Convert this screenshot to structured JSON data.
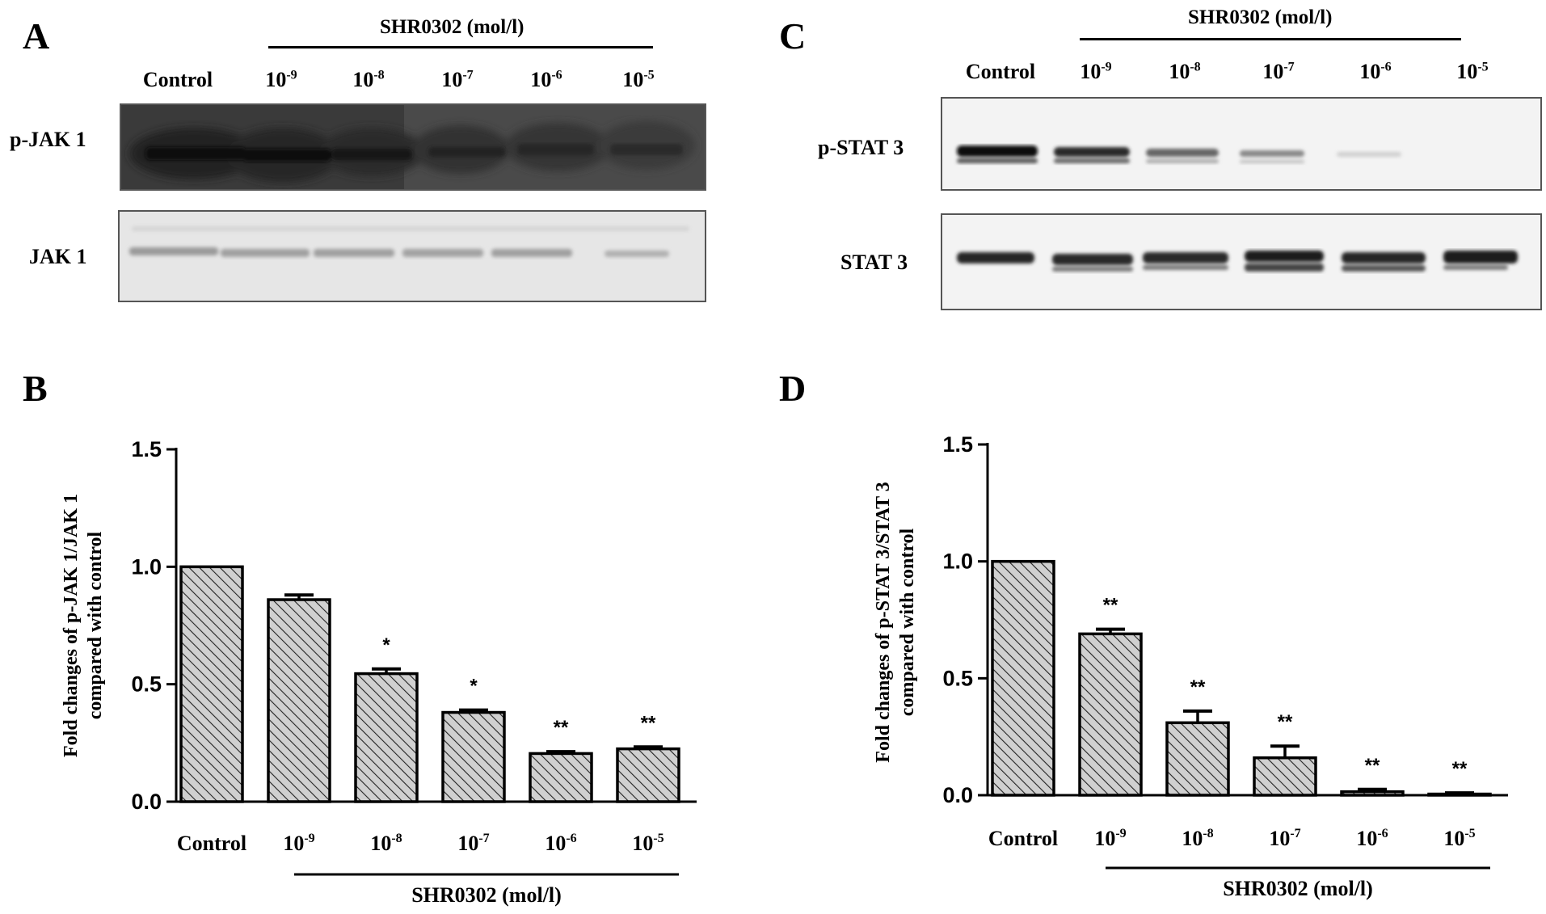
{
  "panels": {
    "A": {
      "letter": "A",
      "treatment_header": "SHR0302 (mol/l)",
      "lanes": [
        {
          "base": "Control",
          "exp": ""
        },
        {
          "base": "10",
          "exp": "-9"
        },
        {
          "base": "10",
          "exp": "-8"
        },
        {
          "base": "10",
          "exp": "-7"
        },
        {
          "base": "10",
          "exp": "-6"
        },
        {
          "base": "10",
          "exp": "-5"
        }
      ],
      "rows": [
        "p-JAK 1",
        "JAK 1"
      ]
    },
    "C": {
      "letter": "C",
      "treatment_header": "SHR0302 (mol/l)",
      "lanes": [
        {
          "base": "Control",
          "exp": ""
        },
        {
          "base": "10",
          "exp": "-9"
        },
        {
          "base": "10",
          "exp": "-8"
        },
        {
          "base": "10",
          "exp": "-7"
        },
        {
          "base": "10",
          "exp": "-6"
        },
        {
          "base": "10",
          "exp": "-5"
        }
      ],
      "rows": [
        "p-STAT 3",
        "STAT 3"
      ]
    },
    "B": {
      "letter": "B"
    },
    "D": {
      "letter": "D"
    }
  },
  "chart_data": [
    {
      "panel": "B",
      "type": "bar",
      "categories": [
        {
          "base": "Control",
          "exp": ""
        },
        {
          "base": "10",
          "exp": "-9"
        },
        {
          "base": "10",
          "exp": "-8"
        },
        {
          "base": "10",
          "exp": "-7"
        },
        {
          "base": "10",
          "exp": "-6"
        },
        {
          "base": "10",
          "exp": "-5"
        }
      ],
      "values": [
        1.0,
        0.86,
        0.545,
        0.38,
        0.205,
        0.225
      ],
      "errors": [
        0.0,
        0.02,
        0.02,
        0.01,
        0.008,
        0.008
      ],
      "significance": [
        "",
        "",
        "*",
        "*",
        "**",
        "**"
      ],
      "ylabel_line1": "Fold changes of p-JAK 1/JAK 1",
      "ylabel_line2": "compared  with control",
      "xlabel": "SHR0302  (mol/l)",
      "ylim": [
        0,
        1.5
      ],
      "yticks": [
        "0.0",
        "0.5",
        "1.0",
        "1.5"
      ],
      "bar_fill": "hatched gray"
    },
    {
      "panel": "D",
      "type": "bar",
      "categories": [
        {
          "base": "Control",
          "exp": ""
        },
        {
          "base": "10",
          "exp": "-9"
        },
        {
          "base": "10",
          "exp": "-8"
        },
        {
          "base": "10",
          "exp": "-7"
        },
        {
          "base": "10",
          "exp": "-6"
        },
        {
          "base": "10",
          "exp": "-5"
        }
      ],
      "values": [
        1.0,
        0.69,
        0.31,
        0.16,
        0.015,
        0.005
      ],
      "errors": [
        0.0,
        0.02,
        0.05,
        0.05,
        0.01,
        0.005
      ],
      "significance": [
        "",
        "**",
        "**",
        "**",
        "**",
        "**"
      ],
      "ylabel_line1": "Fold changes of p-STAT 3/STAT 3",
      "ylabel_line2": "compared with control",
      "xlabel": "SHR0302 (mol/l)",
      "ylim": [
        0,
        1.5
      ],
      "yticks": [
        "0.0",
        "0.5",
        "1.0",
        "1.5"
      ],
      "bar_fill": "hatched gray"
    }
  ]
}
